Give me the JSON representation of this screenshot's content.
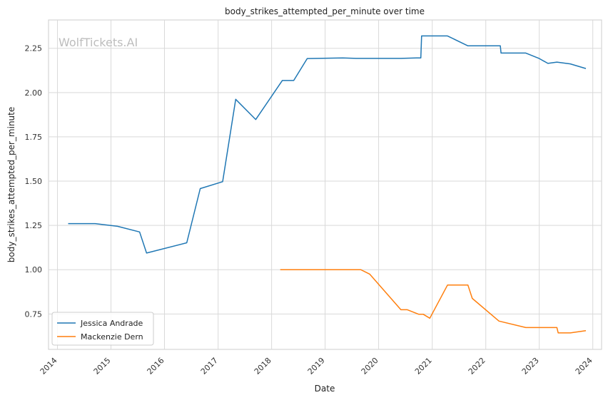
{
  "chart_data": {
    "type": "line",
    "title": "body_strikes_attempted_per_minute over time",
    "xlabel": "Date",
    "ylabel": "body_strikes_attempted_per_minute",
    "watermark": "WolfTickets.AI",
    "xlim": [
      "2013-11-01",
      "2024-03-01"
    ],
    "ylim": [
      0.55,
      2.41
    ],
    "x_ticks": [
      "2014",
      "2015",
      "2016",
      "2017",
      "2018",
      "2019",
      "2020",
      "2021",
      "2022",
      "2023",
      "2024"
    ],
    "y_ticks": [
      "0.75",
      "1.00",
      "1.25",
      "1.50",
      "1.75",
      "2.00",
      "2.25"
    ],
    "grid": true,
    "legend_position": "lower-left",
    "series": [
      {
        "name": "Jessica Andrade",
        "color": "#1f77b4",
        "points": [
          [
            "2014-03-15",
            1.26
          ],
          [
            "2014-09-15",
            1.26
          ],
          [
            "2015-02-15",
            1.245
          ],
          [
            "2015-07-15",
            1.213
          ],
          [
            "2015-09-01",
            1.094
          ],
          [
            "2016-06-01",
            1.152
          ],
          [
            "2016-09-01",
            1.458
          ],
          [
            "2017-02-01",
            1.497
          ],
          [
            "2017-05-01",
            1.962
          ],
          [
            "2017-09-15",
            1.848
          ],
          [
            "2018-03-15",
            2.068
          ],
          [
            "2018-06-01",
            2.068
          ],
          [
            "2018-09-01",
            2.192
          ],
          [
            "2019-05-01",
            2.196
          ],
          [
            "2019-08-01",
            2.193
          ],
          [
            "2020-06-01",
            2.193
          ],
          [
            "2020-09-15",
            2.196
          ],
          [
            "2020-10-15",
            2.196
          ],
          [
            "2020-10-20",
            2.32
          ],
          [
            "2021-03-01",
            2.32
          ],
          [
            "2021-04-15",
            2.32
          ],
          [
            "2021-09-01",
            2.264
          ],
          [
            "2022-03-01",
            2.264
          ],
          [
            "2022-04-10",
            2.264
          ],
          [
            "2022-04-15",
            2.223
          ],
          [
            "2022-10-01",
            2.223
          ],
          [
            "2023-01-01",
            2.192
          ],
          [
            "2023-03-01",
            2.165
          ],
          [
            "2023-05-01",
            2.172
          ],
          [
            "2023-08-01",
            2.162
          ],
          [
            "2023-11-15",
            2.136
          ]
        ]
      },
      {
        "name": "Mackenzie Dern",
        "color": "#ff7f0e",
        "points": [
          [
            "2018-03-01",
            1.0
          ],
          [
            "2019-07-01",
            1.0
          ],
          [
            "2019-09-01",
            1.0
          ],
          [
            "2019-11-01",
            0.975
          ],
          [
            "2020-06-01",
            0.774
          ],
          [
            "2020-07-15",
            0.774
          ],
          [
            "2020-10-01",
            0.748
          ],
          [
            "2020-11-01",
            0.748
          ],
          [
            "2020-12-15",
            0.726
          ],
          [
            "2021-04-15",
            0.913
          ],
          [
            "2021-08-01",
            0.913
          ],
          [
            "2021-09-01",
            0.913
          ],
          [
            "2021-10-01",
            0.838
          ],
          [
            "2022-04-01",
            0.71
          ],
          [
            "2022-10-01",
            0.673
          ],
          [
            "2023-03-01",
            0.673
          ],
          [
            "2023-05-01",
            0.673
          ],
          [
            "2023-05-10",
            0.643
          ],
          [
            "2023-08-01",
            0.643
          ],
          [
            "2023-11-15",
            0.656
          ]
        ]
      }
    ]
  }
}
